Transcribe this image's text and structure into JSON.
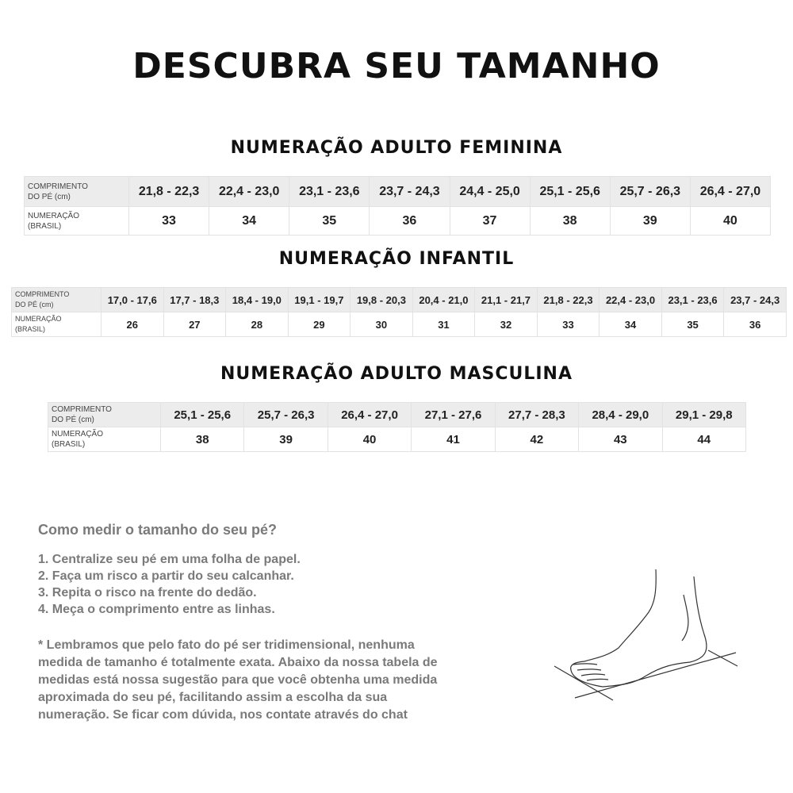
{
  "title": "DESCUBRA SEU TAMANHO",
  "row_labels": {
    "length_1": "COMPRIMENTO",
    "length_2": "DO PÉ (cm)",
    "size_1": "NUMERAÇÃO",
    "size_2": "(BRASIL)"
  },
  "tables": [
    {
      "heading": "NUMERAÇÃO ADULTO FEMININA",
      "lengths": [
        "21,8 - 22,3",
        "22,4 - 23,0",
        "23,1 - 23,6",
        "23,7 - 24,3",
        "24,4 - 25,0",
        "25,1 - 25,6",
        "25,7 - 26,3",
        "26,4 - 27,0"
      ],
      "sizes": [
        "33",
        "34",
        "35",
        "36",
        "37",
        "38",
        "39",
        "40"
      ]
    },
    {
      "heading": "NUMERAÇÃO INFANTIL",
      "lengths": [
        "17,0 - 17,6",
        "17,7 - 18,3",
        "18,4 - 19,0",
        "19,1 - 19,7",
        "19,8 - 20,3",
        "20,4 - 21,0",
        "21,1 - 21,7",
        "21,8 - 22,3",
        "22,4 - 23,0",
        "23,1 - 23,6",
        "23,7 - 24,3"
      ],
      "sizes": [
        "26",
        "27",
        "28",
        "29",
        "30",
        "31",
        "32",
        "33",
        "34",
        "35",
        "36"
      ]
    },
    {
      "heading": "NUMERAÇÃO ADULTO MASCULINA",
      "lengths": [
        "25,1 - 25,6",
        "25,7 - 26,3",
        "26,4 - 27,0",
        "27,1 - 27,6",
        "27,7 - 28,3",
        "28,4 - 29,0",
        "29,1 - 29,8"
      ],
      "sizes": [
        "38",
        "39",
        "40",
        "41",
        "42",
        "43",
        "44"
      ]
    }
  ],
  "howto": {
    "heading": "Como medir o tamanho do seu pé?",
    "steps": [
      "1. Centralize seu pé em uma folha de papel.",
      "2. Faça um risco a partir do seu calcanhar.",
      "3. Repita o risco na frente do dedão.",
      "4. Meça o comprimento entre as linhas."
    ],
    "note": [
      "* Lembramos que pelo fato do pé ser tridimensional, nenhuma",
      "medida de tamanho é totalmente exata. Abaixo da nossa tabela de",
      "medidas está nossa sugestão para que você obtenha uma medida",
      "aproximada do seu pé, facilitando assim a escolha da sua",
      "numeração. Se ficar com dúvida, nos contate através do chat"
    ]
  },
  "illustration": "foot-measurement-drawing"
}
